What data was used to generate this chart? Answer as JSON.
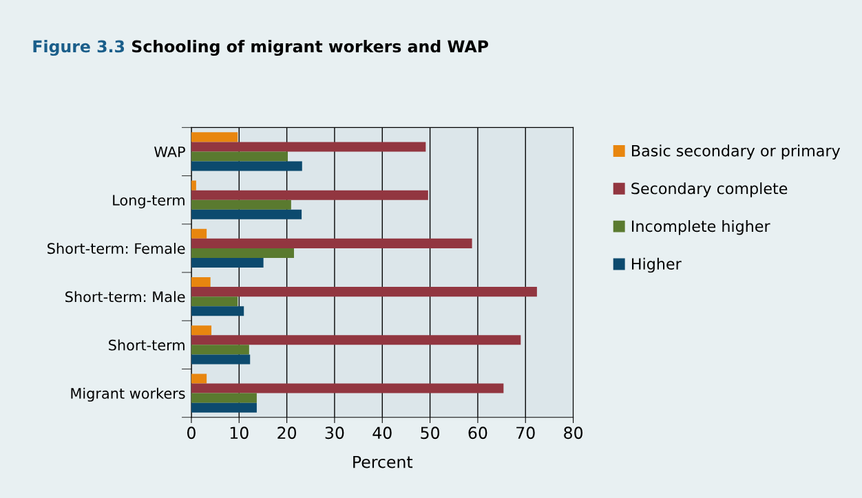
{
  "chart_data": {
    "type": "bar",
    "orientation": "horizontal",
    "title": "Figure 3.3 Schooling of migrant workers and WAP",
    "xlabel": "Percent",
    "categories": [
      "WAP",
      "Long-term",
      "Short-term: Female",
      "Short-term: Male",
      "Short-term",
      "Migrant workers"
    ],
    "series": [
      {
        "name": "Basic secondary or primary",
        "color": "#e8860f",
        "values": [
          9.7,
          1.0,
          3.2,
          4.0,
          4.2,
          3.2
        ]
      },
      {
        "name": "Secondary complete",
        "color": "#923640",
        "values": [
          49.1,
          49.6,
          58.8,
          72.4,
          69.0,
          65.4
        ]
      },
      {
        "name": "Incomplete higher",
        "color": "#5a7a2f",
        "values": [
          20.2,
          20.9,
          21.5,
          9.7,
          12.1,
          13.7
        ]
      },
      {
        "name": "Higher",
        "color": "#0c4a6e",
        "values": [
          23.2,
          23.1,
          15.1,
          11.0,
          12.3,
          13.7
        ]
      }
    ],
    "xlim": [
      0,
      80
    ],
    "xticks": [
      0,
      10,
      20,
      30,
      40,
      50,
      60,
      70,
      80
    ],
    "grid": "x",
    "legend": "right"
  }
}
